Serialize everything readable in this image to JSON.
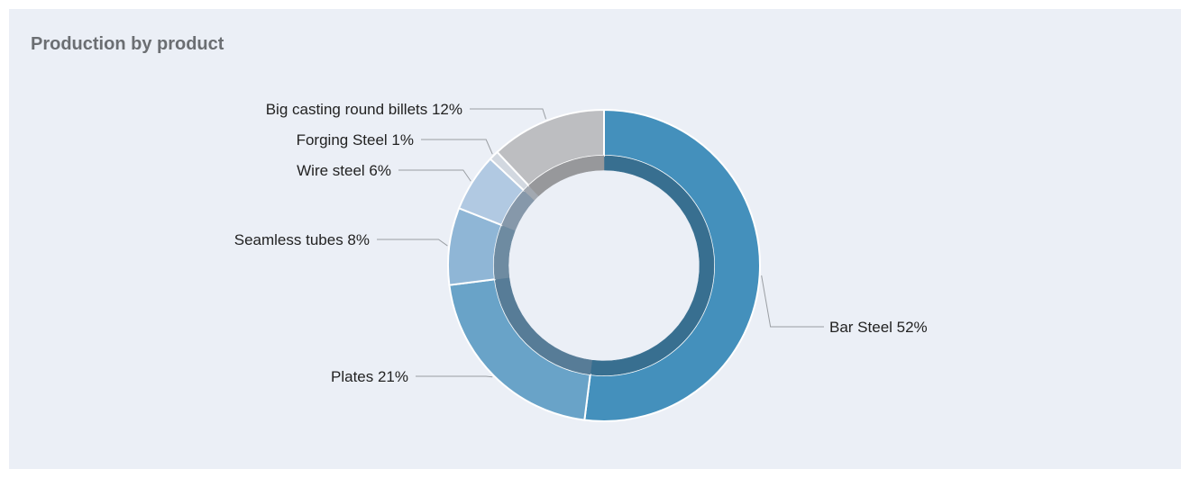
{
  "chart_data": {
    "type": "pie",
    "donut": true,
    "title": "Production by product",
    "slices": [
      {
        "label": "Bar Steel 52%",
        "value": 52,
        "color": "#4490bc",
        "inner": "#386f90"
      },
      {
        "label": "Plates 21%",
        "value": 21,
        "color": "#69a3c8",
        "inner": "#577c97"
      },
      {
        "label": "Seamless tubes 8%",
        "value": 8,
        "color": "#8fb6d6",
        "inner": "#6e8ba1"
      },
      {
        "label": "Wire steel 6%",
        "value": 6,
        "color": "#b1c9e2",
        "inner": "#8698aa"
      },
      {
        "label": "Forging Steel 1%",
        "value": 1,
        "color": "#d2d8e0",
        "inner": "#a2a8b0"
      },
      {
        "label": "Big casting round billets 12%",
        "value": 12,
        "color": "#bdbec1",
        "inner": "#97989b"
      }
    ]
  }
}
